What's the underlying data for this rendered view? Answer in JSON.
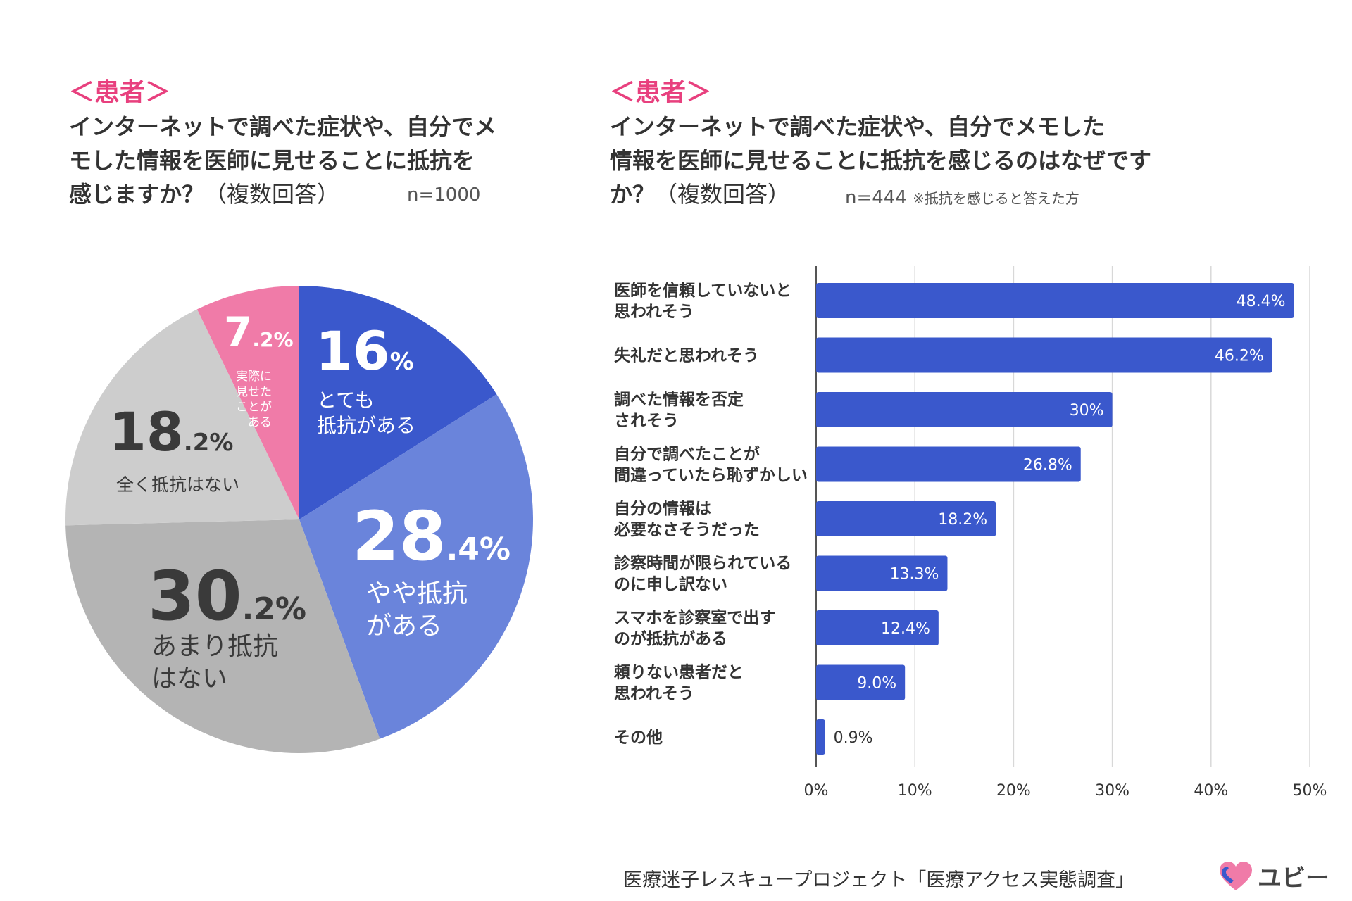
{
  "left": {
    "tag": "＜患者＞",
    "question_lines": [
      "インターネットで調べた症状や、自分でメ",
      "モした情報を医師に見せることに抵抗を",
      "感じますか？"
    ],
    "multi": "（複数回答）",
    "n": "n=1000"
  },
  "right": {
    "tag": "＜患者＞",
    "question_lines": [
      "インターネットで調べた症状や、自分でメモした",
      "情報を医師に見せることに抵抗を感じるのはなぜです",
      "か？"
    ],
    "multi": "（複数回答）",
    "n": "n=444",
    "n_note": "※抵抗を感じると答えた方"
  },
  "footer": "医療迷子レスキュープロジェクト「医療アクセス実態調査」",
  "logo_text": "ユビー",
  "colors": {
    "accent": "#e8407e",
    "bar": "#3a58cc",
    "pie_strong": "#3a58cc",
    "pie_some": "#6a84db",
    "pie_none_much": "#b4b4b4",
    "pie_none": "#cdcdcd",
    "pie_shown": "#f07ba8"
  },
  "chart_data": [
    {
      "type": "pie",
      "title": "インターネットで調べた症状や、自分でメモした情報を医師に見せることに抵抗を感じますか？（複数回答）",
      "slices": [
        {
          "label": "とても抵抗がある",
          "label_lines": [
            "とても",
            "抵抗がある"
          ],
          "value": 16,
          "num": "16",
          "suffix": "%"
        },
        {
          "label": "やや抵抗がある",
          "label_lines": [
            "やや抵抗",
            "がある"
          ],
          "value": 28.4,
          "num": "28",
          "suffix": ".4%"
        },
        {
          "label": "あまり抵抗はない",
          "label_lines": [
            "あまり抵抗",
            "はない"
          ],
          "value": 30.2,
          "num": "30",
          "suffix": ".2%"
        },
        {
          "label": "全く抵抗はない",
          "label_lines": [
            "全く抵抗はない"
          ],
          "value": 18.2,
          "num": "18",
          "suffix": ".2%"
        },
        {
          "label": "実際に見せたことがある",
          "label_lines": [
            "実際に",
            "見せた",
            "ことが",
            "ある"
          ],
          "value": 7.2,
          "num": "7",
          "suffix": ".2%"
        }
      ]
    },
    {
      "type": "bar",
      "orientation": "horizontal",
      "title": "インターネットで調べた症状や、自分でメモした情報を医師に見せることに抵抗を感じるのはなぜですか？（複数回答）",
      "categories": [
        [
          "医師を信頼していないと",
          "思われそう"
        ],
        [
          "失礼だと思われそう"
        ],
        [
          "調べた情報を否定",
          "されそう"
        ],
        [
          "自分で調べたことが",
          "間違っていたら恥ずかしい"
        ],
        [
          "自分の情報は",
          "必要なさそうだった"
        ],
        [
          "診察時間が限られている",
          "のに申し訳ない"
        ],
        [
          "スマホを診察室で出す",
          "のが抵抗がある"
        ],
        [
          "頼りない患者だと",
          "思われそう"
        ],
        [
          "その他"
        ]
      ],
      "values": [
        48.4,
        46.2,
        30,
        26.8,
        18.2,
        13.3,
        12.4,
        9.0,
        0.9
      ],
      "value_labels": [
        "48.4%",
        "46.2%",
        "30%",
        "26.8%",
        "18.2%",
        "13.3%",
        "12.4%",
        "9.0%",
        "0.9%"
      ],
      "xlim": [
        0,
        50
      ],
      "ticks": [
        "0%",
        "10%",
        "20%",
        "30%",
        "40%",
        "50%"
      ],
      "grid": true
    }
  ]
}
